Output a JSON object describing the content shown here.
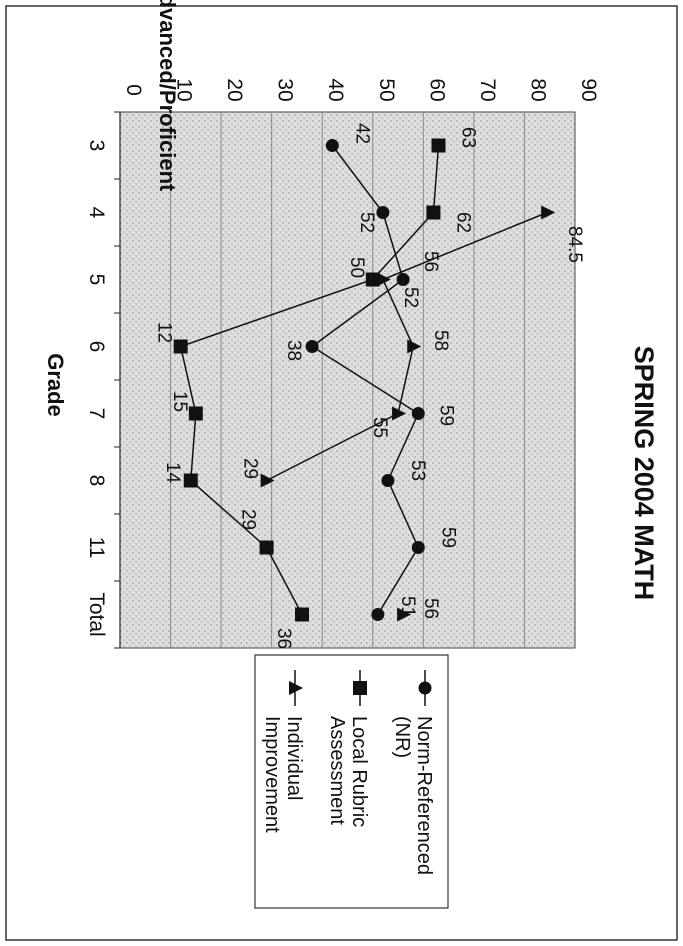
{
  "chart_data": {
    "type": "line",
    "title": "SPRING 2004 MATH",
    "xlabel": "Grade",
    "ylabel": "Percent Advanced/Proficient",
    "categories": [
      "3",
      "4",
      "5",
      "6",
      "7",
      "8",
      "11",
      "Total"
    ],
    "ylim": [
      0,
      90
    ],
    "yticks": [
      "0",
      "10",
      "20",
      "30",
      "40",
      "50",
      "60",
      "70",
      "80",
      "90"
    ],
    "grid": true,
    "legend_position": "right",
    "series": [
      {
        "name": "Norm-Referenced (NR)",
        "marker": "circle",
        "values": [
          42,
          52,
          56,
          38,
          59,
          53,
          59,
          51
        ],
        "labels": [
          "42",
          "52",
          "56",
          "38",
          "59",
          "53",
          "59",
          "51"
        ]
      },
      {
        "name": "Local Rubric Assessment",
        "marker": "square",
        "values": [
          63,
          62,
          50,
          12,
          15,
          14,
          29,
          36
        ],
        "labels": [
          "63",
          "62",
          "50",
          "12",
          "15",
          "14",
          "29",
          "36"
        ]
      },
      {
        "name": "Individual Improvement",
        "marker": "triangle",
        "values": [
          null,
          84.5,
          52,
          58,
          55,
          29,
          null,
          56
        ],
        "labels": [
          "",
          "84.5",
          "52",
          "58",
          "55",
          "29",
          "",
          "56"
        ]
      }
    ],
    "legend_lines": [
      [
        "Norm-Referenced",
        "(NR)"
      ],
      [
        "Local Rubric",
        "Assessment"
      ],
      [
        "Individual",
        "Improvement"
      ]
    ]
  }
}
